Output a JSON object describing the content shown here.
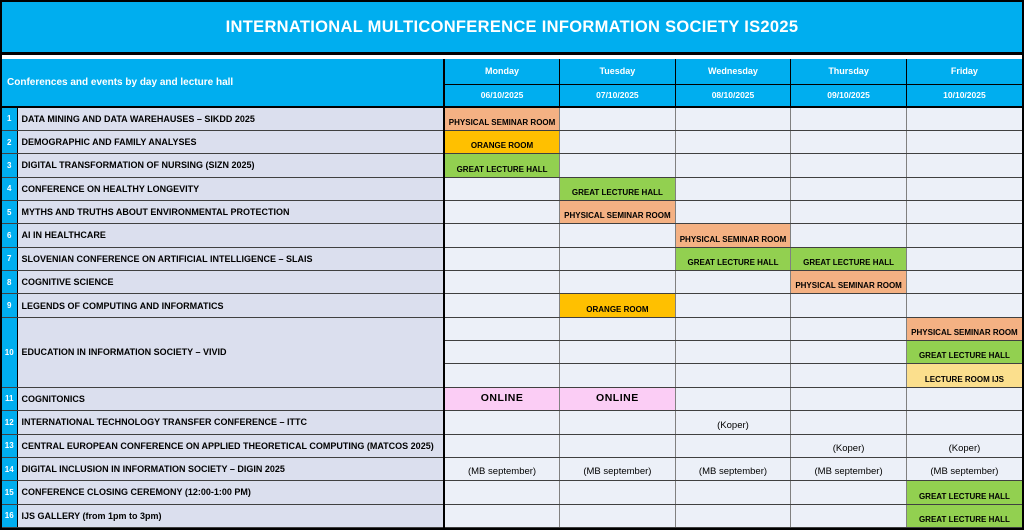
{
  "title": "INTERNATIONAL MULTICONFERENCE INFORMATION SOCIETY IS2025",
  "colors": {
    "accent_cyan": "#00AEEF",
    "label_column_bg": "#DBDFEE",
    "day_cell_bg": "#ECF0F8",
    "physical_seminar_room": "#F4B183",
    "orange_room": "#FFC000",
    "great_lecture_hall": "#92D050",
    "lecture_room_ijs": "#FBDF8D",
    "online": "#FBCDF5"
  },
  "table": {
    "corner_label": "Conferences and events by day and lecture hall",
    "days": [
      {
        "name": "Monday",
        "date": "06/10/2025"
      },
      {
        "name": "Tuesday",
        "date": "07/10/2025"
      },
      {
        "name": "Wednesday",
        "date": "08/10/2025"
      },
      {
        "name": "Thursday",
        "date": "09/10/2025"
      },
      {
        "name": "Friday",
        "date": "10/10/2025"
      }
    ],
    "rows": [
      {
        "num": "1",
        "label": "DATA MINING AND DATA WAREHAUSES – SIKDD 2025",
        "cells": [
          {
            "text": "PHYSICAL SEMINAR ROOM",
            "bg": "#F4B183"
          },
          null,
          null,
          null,
          null
        ]
      },
      {
        "num": "2",
        "label": "DEMOGRAPHIC AND FAMILY ANALYSES",
        "cells": [
          {
            "text": "ORANGE ROOM",
            "bg": "#FFC000"
          },
          null,
          null,
          null,
          null
        ]
      },
      {
        "num": "3",
        "label": "DIGITAL TRANSFORMATION OF NURSING (SIZN 2025)",
        "cells": [
          {
            "text": "GREAT LECTURE HALL",
            "bg": "#92D050"
          },
          null,
          null,
          null,
          null
        ]
      },
      {
        "num": "4",
        "label": "CONFERENCE ON HEALTHY LONGEVITY",
        "cells": [
          null,
          {
            "text": "GREAT LECTURE HALL",
            "bg": "#92D050"
          },
          null,
          null,
          null
        ]
      },
      {
        "num": "5",
        "label": "MYTHS AND TRUTHS ABOUT ENVIRONMENTAL PROTECTION",
        "cells": [
          null,
          {
            "text": "PHYSICAL SEMINAR ROOM",
            "bg": "#F4B183"
          },
          null,
          null,
          null
        ]
      },
      {
        "num": "6",
        "label": "AI IN HEALTHCARE",
        "cells": [
          null,
          null,
          {
            "text": "PHYSICAL SEMINAR ROOM",
            "bg": "#F4B183"
          },
          null,
          null
        ]
      },
      {
        "num": "7",
        "label": "SLOVENIAN CONFERENCE ON ARTIFICIAL INTELLIGENCE – SLAIS",
        "cells": [
          null,
          null,
          {
            "text": "GREAT LECTURE HALL",
            "bg": "#92D050"
          },
          {
            "text": "GREAT LECTURE HALL",
            "bg": "#92D050"
          },
          null
        ]
      },
      {
        "num": "8",
        "label": "COGNITIVE SCIENCE",
        "cells": [
          null,
          null,
          null,
          {
            "text": "PHYSICAL SEMINAR ROOM",
            "bg": "#F4B183"
          },
          null
        ]
      },
      {
        "num": "9",
        "label": "LEGENDS OF COMPUTING AND INFORMATICS",
        "cells": [
          null,
          {
            "text": "ORANGE ROOM",
            "bg": "#FFC000"
          },
          null,
          null,
          null
        ]
      },
      {
        "num": "10",
        "label": "EDUCATION IN INFORMATION SOCIETY – VIVID",
        "subrows": [
          [
            null,
            null,
            null,
            null,
            {
              "text": "PHYSICAL SEMINAR ROOM",
              "bg": "#F4B183"
            }
          ],
          [
            null,
            null,
            null,
            null,
            {
              "text": "GREAT LECTURE HALL",
              "bg": "#92D050"
            }
          ],
          [
            null,
            null,
            null,
            null,
            {
              "text": "LECTURE ROOM IJS",
              "bg": "#FBDF8D"
            }
          ]
        ]
      },
      {
        "num": "11",
        "label": "COGNITONICS",
        "cells": [
          {
            "text": "ONLINE",
            "bg": "#FBCDF5",
            "style": "online"
          },
          {
            "text": "ONLINE",
            "bg": "#FBCDF5",
            "style": "online"
          },
          null,
          null,
          null
        ]
      },
      {
        "num": "12",
        "label": "INTERNATIONAL TECHNOLOGY TRANSFER CONFERENCE – ITTC",
        "cells": [
          null,
          null,
          {
            "text": "(Koper)",
            "style": "plain"
          },
          null,
          null
        ]
      },
      {
        "num": "13",
        "label": "CENTRAL EUROPEAN CONFERENCE ON APPLIED THEORETICAL COMPUTING (MATCOS 2025)",
        "cells": [
          null,
          null,
          null,
          {
            "text": "(Koper)",
            "style": "plain"
          },
          {
            "text": "(Koper)",
            "style": "plain"
          }
        ]
      },
      {
        "num": "14",
        "label": "DIGITAL INCLUSION IN INFORMATION SOCIETY – DIGIN 2025",
        "cells": [
          {
            "text": "(MB september)",
            "style": "plain"
          },
          {
            "text": "(MB september)",
            "style": "plain"
          },
          {
            "text": "(MB september)",
            "style": "plain"
          },
          {
            "text": "(MB september)",
            "style": "plain"
          },
          {
            "text": "(MB september)",
            "style": "plain"
          }
        ]
      },
      {
        "num": "15",
        "label": "CONFERENCE CLOSING CEREMONY (12:00-1:00 PM)",
        "cells": [
          null,
          null,
          null,
          null,
          {
            "text": "GREAT LECTURE HALL",
            "bg": "#92D050"
          }
        ]
      },
      {
        "num": "16",
        "label": "IJS GALLERY (from 1pm to 3pm)",
        "cells": [
          null,
          null,
          null,
          null,
          {
            "text": "GREAT LECTURE HALL",
            "bg": "#92D050"
          }
        ]
      }
    ]
  }
}
